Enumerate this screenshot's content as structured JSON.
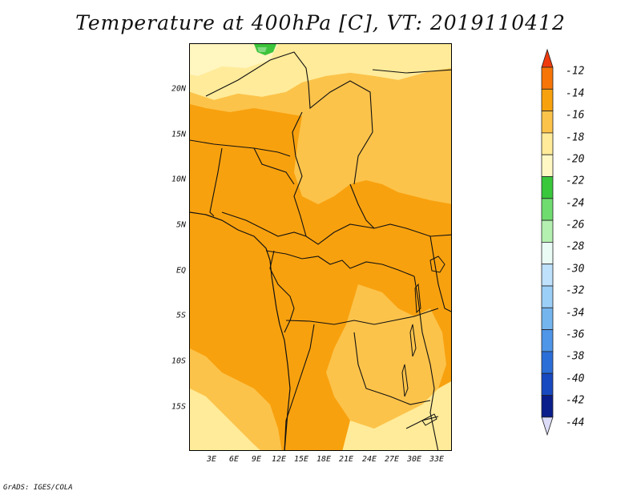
{
  "title": "Temperature at 400hPa [C], VT: 2019110412",
  "credit": "GrADS: IGES/COLA",
  "map": {
    "lat_labels": [
      "20N",
      "15N",
      "10N",
      "5N",
      "EQ",
      "5S",
      "10S",
      "15S"
    ],
    "lon_labels": [
      "3E",
      "6E",
      "9E",
      "12E",
      "15E",
      "18E",
      "21E",
      "24E",
      "27E",
      "30E",
      "33E"
    ],
    "fill_colors": {
      "band_20_18": "#ffeb99",
      "band_18_16": "#fcc34a",
      "band_16_14": "#f8a10e",
      "band_22_20": "#fff6c0",
      "green_patch": "#3cc43c",
      "green_light": "#82d982"
    }
  },
  "colorbar": {
    "labels": [
      "-12",
      "-14",
      "-16",
      "-18",
      "-20",
      "-22",
      "-24",
      "-26",
      "-28",
      "-30",
      "-32",
      "-34",
      "-36",
      "-38",
      "-40",
      "-42",
      "-44"
    ],
    "colors": [
      "#ee3a0c",
      "#f77507",
      "#f8a10e",
      "#fcc34a",
      "#ffeb99",
      "#fff8c4",
      "#39c73c",
      "#6fdc6f",
      "#b4f0b0",
      "#e9fbf4",
      "#bfe1fb",
      "#9ccff7",
      "#74b5ee",
      "#4f95e8",
      "#2c6ed8",
      "#1849c0",
      "#0a1d8a",
      "#dcdcf8"
    ]
  }
}
